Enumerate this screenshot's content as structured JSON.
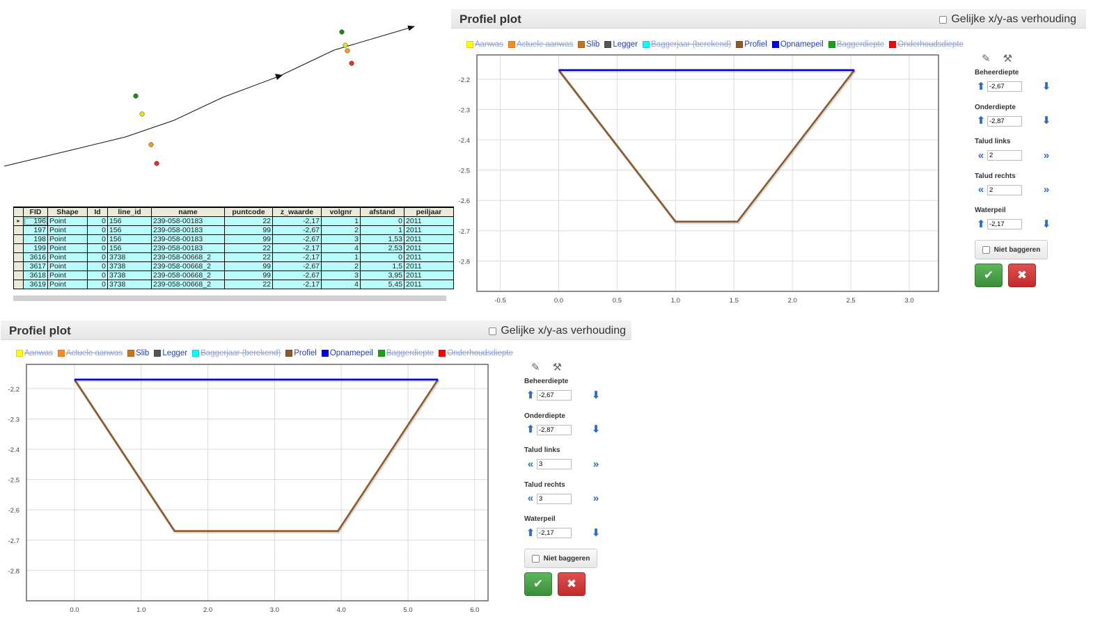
{
  "map": {},
  "table": {
    "columns": [
      "FID",
      "Shape",
      "Id",
      "line_id",
      "name",
      "puntcode",
      "z_waarde",
      "volgnr",
      "afstand",
      "peiljaar"
    ],
    "rows": [
      [
        "196",
        "Point",
        "0",
        "156",
        "239-058-00183",
        "22",
        "-2,17",
        "1",
        "0",
        "2011"
      ],
      [
        "197",
        "Point",
        "0",
        "156",
        "239-058-00183",
        "99",
        "-2,67",
        "2",
        "1",
        "2011"
      ],
      [
        "198",
        "Point",
        "0",
        "156",
        "239-058-00183",
        "99",
        "-2,67",
        "3",
        "1,53",
        "2011"
      ],
      [
        "199",
        "Point",
        "0",
        "156",
        "239-058-00183",
        "22",
        "-2,17",
        "4",
        "2,53",
        "2011"
      ],
      [
        "3616",
        "Point",
        "0",
        "3738",
        "239-058-00668_2",
        "22",
        "-2,17",
        "1",
        "0",
        "2011"
      ],
      [
        "3617",
        "Point",
        "0",
        "3738",
        "239-058-00668_2",
        "99",
        "-2,67",
        "2",
        "1,5",
        "2011"
      ],
      [
        "3618",
        "Point",
        "0",
        "3738",
        "239-058-00668_2",
        "99",
        "-2,67",
        "3",
        "3,95",
        "2011"
      ],
      [
        "3619",
        "Point",
        "0",
        "3738",
        "239-058-00668_2",
        "22",
        "-2,17",
        "4",
        "5,45",
        "2011"
      ]
    ]
  },
  "panels": [
    {
      "title": "Profiel plot",
      "ratio_label": "Gelijke x/y-as verhouding",
      "legend": [
        {
          "label": "Aanwas",
          "color": "#ffff00",
          "off": true
        },
        {
          "label": "Actuele aanwas",
          "color": "#ff8c1a",
          "off": true
        },
        {
          "label": "Slib",
          "color": "#c8741e",
          "off": false
        },
        {
          "label": "Legger",
          "color": "#555555",
          "off": false
        },
        {
          "label": "Baggerjaar (berekend)",
          "color": "#00ffff",
          "off": true
        },
        {
          "label": "Profiel",
          "color": "#8b5a2b",
          "off": false
        },
        {
          "label": "Opnamepeil",
          "color": "#0000ee",
          "off": false
        },
        {
          "label": "Baggerdiepte",
          "color": "#1aa31a",
          "off": true
        },
        {
          "label": "Onderhoudsdiepte",
          "color": "#ff0000",
          "off": true
        }
      ],
      "chart_data": {
        "type": "line",
        "xlim": [
          -0.7,
          3.25
        ],
        "ylim": [
          -2.9,
          -2.12
        ],
        "xticks": [
          -0.5,
          0.0,
          0.5,
          1.0,
          1.5,
          2.0,
          2.5,
          3.0
        ],
        "xtick_labels": [
          "-0.5",
          "0.0",
          "0.5",
          "1.0",
          "1.5",
          "2.0",
          "2.5",
          "3.0"
        ],
        "yticks": [
          -2.2,
          -2.3,
          -2.4,
          -2.5,
          -2.6,
          -2.7,
          -2.8
        ],
        "ytick_labels": [
          "-2.2",
          "-2.3",
          "-2.4",
          "-2.5",
          "-2.6",
          "-2.7",
          "-2.8"
        ],
        "series": [
          {
            "name": "Profiel",
            "color": "#8b5a2b",
            "x": [
              0,
              1,
              1.53,
              2.53
            ],
            "y": [
              -2.17,
              -2.67,
              -2.67,
              -2.17
            ]
          },
          {
            "name": "Opnamepeil",
            "color": "#0000ee",
            "x": [
              0,
              2.53
            ],
            "y": [
              -2.17,
              -2.17
            ]
          }
        ]
      },
      "controls": {
        "beheerdiepte_label": "Beheerdiepte",
        "beheerdiepte_value": "-2,67",
        "onderdiepte_label": "Onderdiepte",
        "onderdiepte_value": "-2,87",
        "talud_links_label": "Talud links",
        "talud_links_value": "2",
        "talud_rechts_label": "Talud rechts",
        "talud_rechts_value": "2",
        "waterpeil_label": "Waterpeil",
        "waterpeil_value": "-2,17",
        "niet_baggeren_label": "Niet baggeren"
      }
    },
    {
      "title": "Profiel plot",
      "ratio_label": "Gelijke x/y-as verhouding",
      "legend": [
        {
          "label": "Aanwas",
          "color": "#ffff00",
          "off": true
        },
        {
          "label": "Actuele aanwas",
          "color": "#ff8c1a",
          "off": true
        },
        {
          "label": "Slib",
          "color": "#c8741e",
          "off": false
        },
        {
          "label": "Legger",
          "color": "#555555",
          "off": false
        },
        {
          "label": "Baggerjaar (berekend)",
          "color": "#00ffff",
          "off": true
        },
        {
          "label": "Profiel",
          "color": "#8b5a2b",
          "off": false
        },
        {
          "label": "Opnamepeil",
          "color": "#0000ee",
          "off": false
        },
        {
          "label": "Baggerdiepte",
          "color": "#1aa31a",
          "off": true
        },
        {
          "label": "Onderhoudsdiepte",
          "color": "#ff0000",
          "off": true
        }
      ],
      "chart_data": {
        "type": "line",
        "xlim": [
          -0.72,
          6.2
        ],
        "ylim": [
          -2.9,
          -2.12
        ],
        "xticks": [
          0,
          1,
          2,
          3,
          4,
          5,
          6
        ],
        "xtick_labels": [
          "0.0",
          "1.0",
          "2.0",
          "3.0",
          "4.0",
          "5.0",
          "6.0"
        ],
        "yticks": [
          -2.2,
          -2.3,
          -2.4,
          -2.5,
          -2.6,
          -2.7,
          -2.8
        ],
        "ytick_labels": [
          "-2.2",
          "-2.3",
          "-2.4",
          "-2.5",
          "-2.6",
          "-2.7",
          "-2.8"
        ],
        "series": [
          {
            "name": "Profiel",
            "color": "#8b5a2b",
            "x": [
              0,
              1.5,
              3.95,
              5.45
            ],
            "y": [
              -2.17,
              -2.67,
              -2.67,
              -2.17
            ]
          },
          {
            "name": "Opnamepeil",
            "color": "#0000ee",
            "x": [
              0,
              5.45
            ],
            "y": [
              -2.17,
              -2.17
            ]
          }
        ]
      },
      "controls": {
        "beheerdiepte_label": "Beheerdiepte",
        "beheerdiepte_value": "-2,67",
        "onderdiepte_label": "Onderdiepte",
        "onderdiepte_value": "-2,87",
        "talud_links_label": "Talud links",
        "talud_links_value": "3",
        "talud_rechts_label": "Talud rechts",
        "talud_rechts_value": "3",
        "waterpeil_label": "Waterpeil",
        "waterpeil_value": "-2,17",
        "niet_baggeren_label": "Niet baggeren"
      }
    }
  ]
}
